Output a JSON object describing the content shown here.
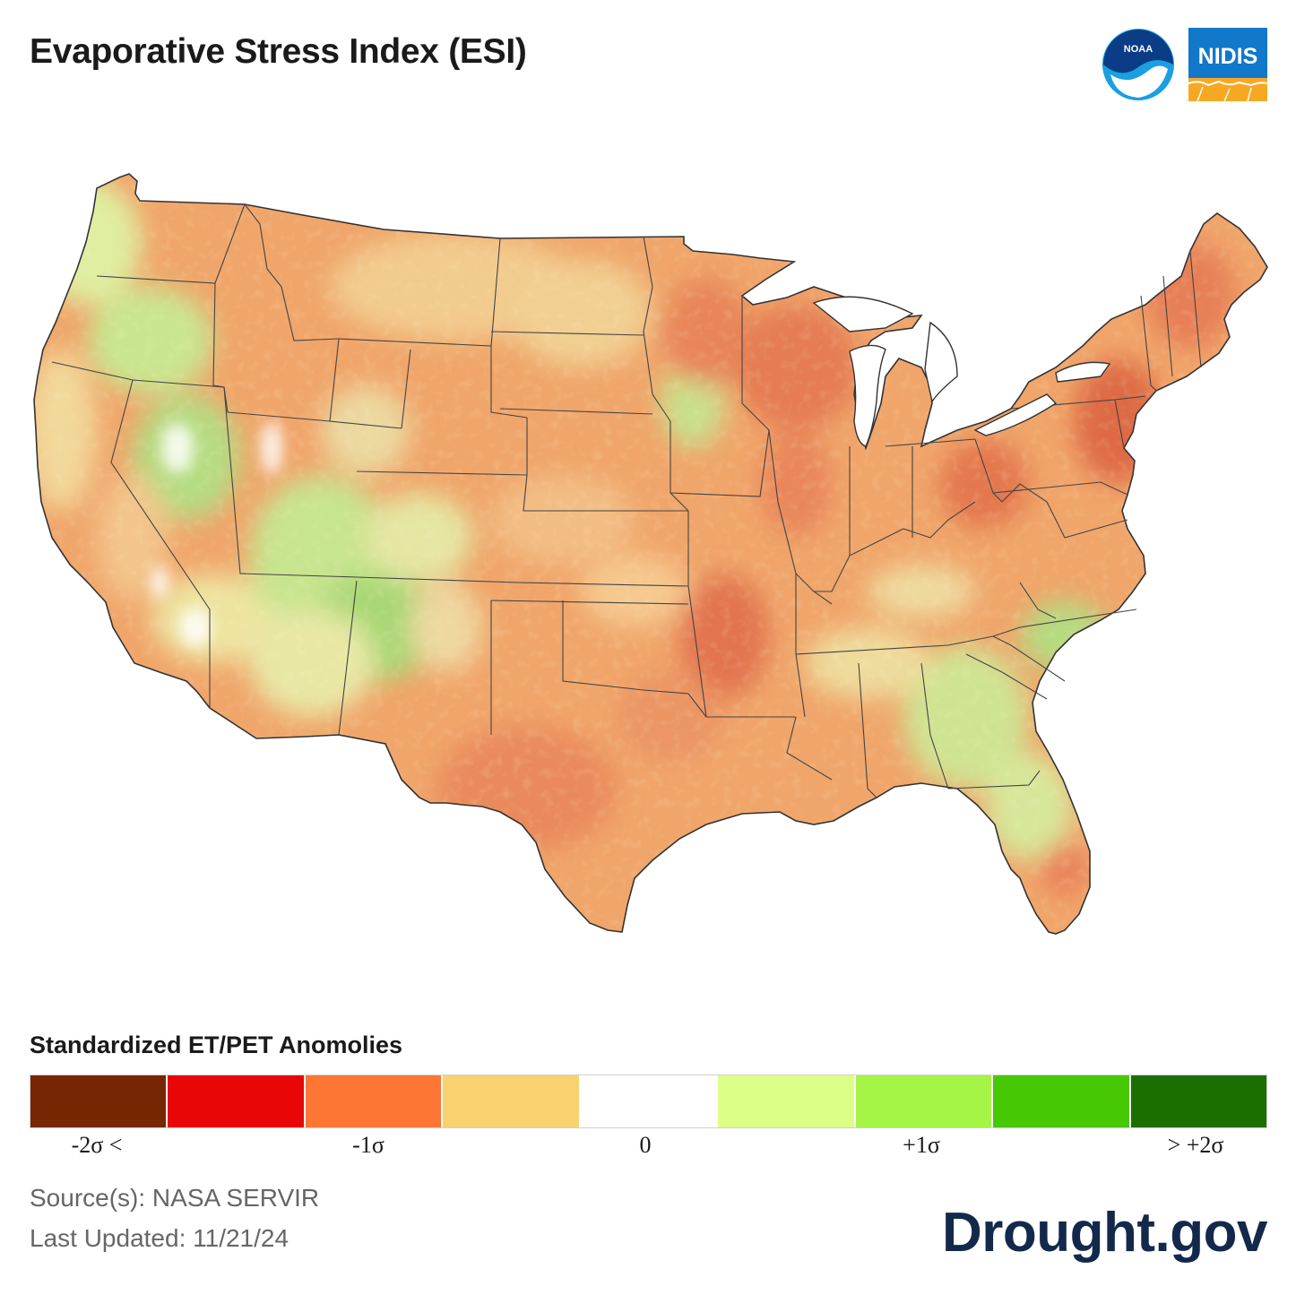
{
  "header": {
    "title": "Evaporative Stress Index (ESI)",
    "logos": {
      "noaa": {
        "text": "NOAA",
        "icon": "noaa-logo-icon"
      },
      "nidis": {
        "text": "NIDIS",
        "icon": "nidis-logo-icon"
      }
    }
  },
  "map": {
    "region": "contiguous-us",
    "layer": "esi-anomaly-shading",
    "dominant_condition": "below-normal ET/PET across most states; above-normal pockets in Southwest, Carolinas, Georgia, Florida and Pacific Northwest"
  },
  "legend": {
    "title": "Standardized ET/PET Anomolies",
    "colors": [
      "#762602",
      "#e80606",
      "#fd7634",
      "#f7d26e",
      "#ffffff",
      "#dcff87",
      "#a4f445",
      "#46c804",
      "#1b6f01"
    ],
    "ticks": [
      "-2σ <",
      "-1σ",
      "0",
      "+1σ",
      "> +2σ"
    ]
  },
  "footer": {
    "source": "Source(s): NASA SERVIR",
    "updated": "Last Updated: 11/21/24",
    "brand": "Drought.gov"
  }
}
